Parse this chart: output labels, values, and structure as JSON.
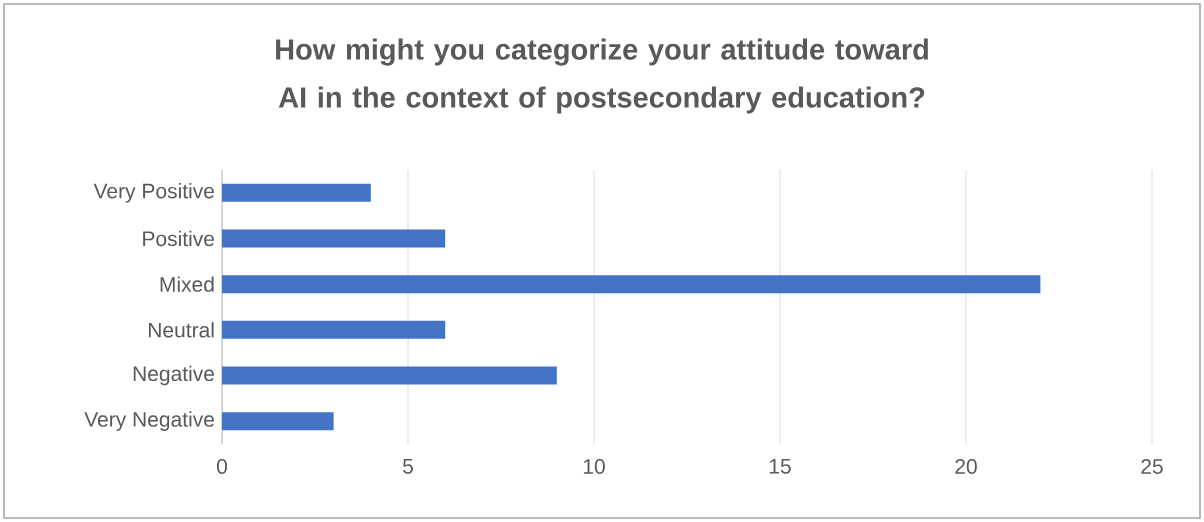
{
  "chart_data": {
    "type": "bar",
    "orientation": "horizontal",
    "title": "How might you categorize your attitude toward AI in the context of postsecondary education?",
    "categories": [
      "Very Positive",
      "Positive",
      "Mixed",
      "Neutral",
      "Negative",
      "Very Negative"
    ],
    "values": [
      4,
      6,
      22,
      6,
      9,
      3
    ],
    "color": "#4472c4",
    "xlim": [
      0,
      25
    ],
    "xticks": [
      0,
      5,
      10,
      15,
      20,
      25
    ],
    "grid": "x"
  }
}
